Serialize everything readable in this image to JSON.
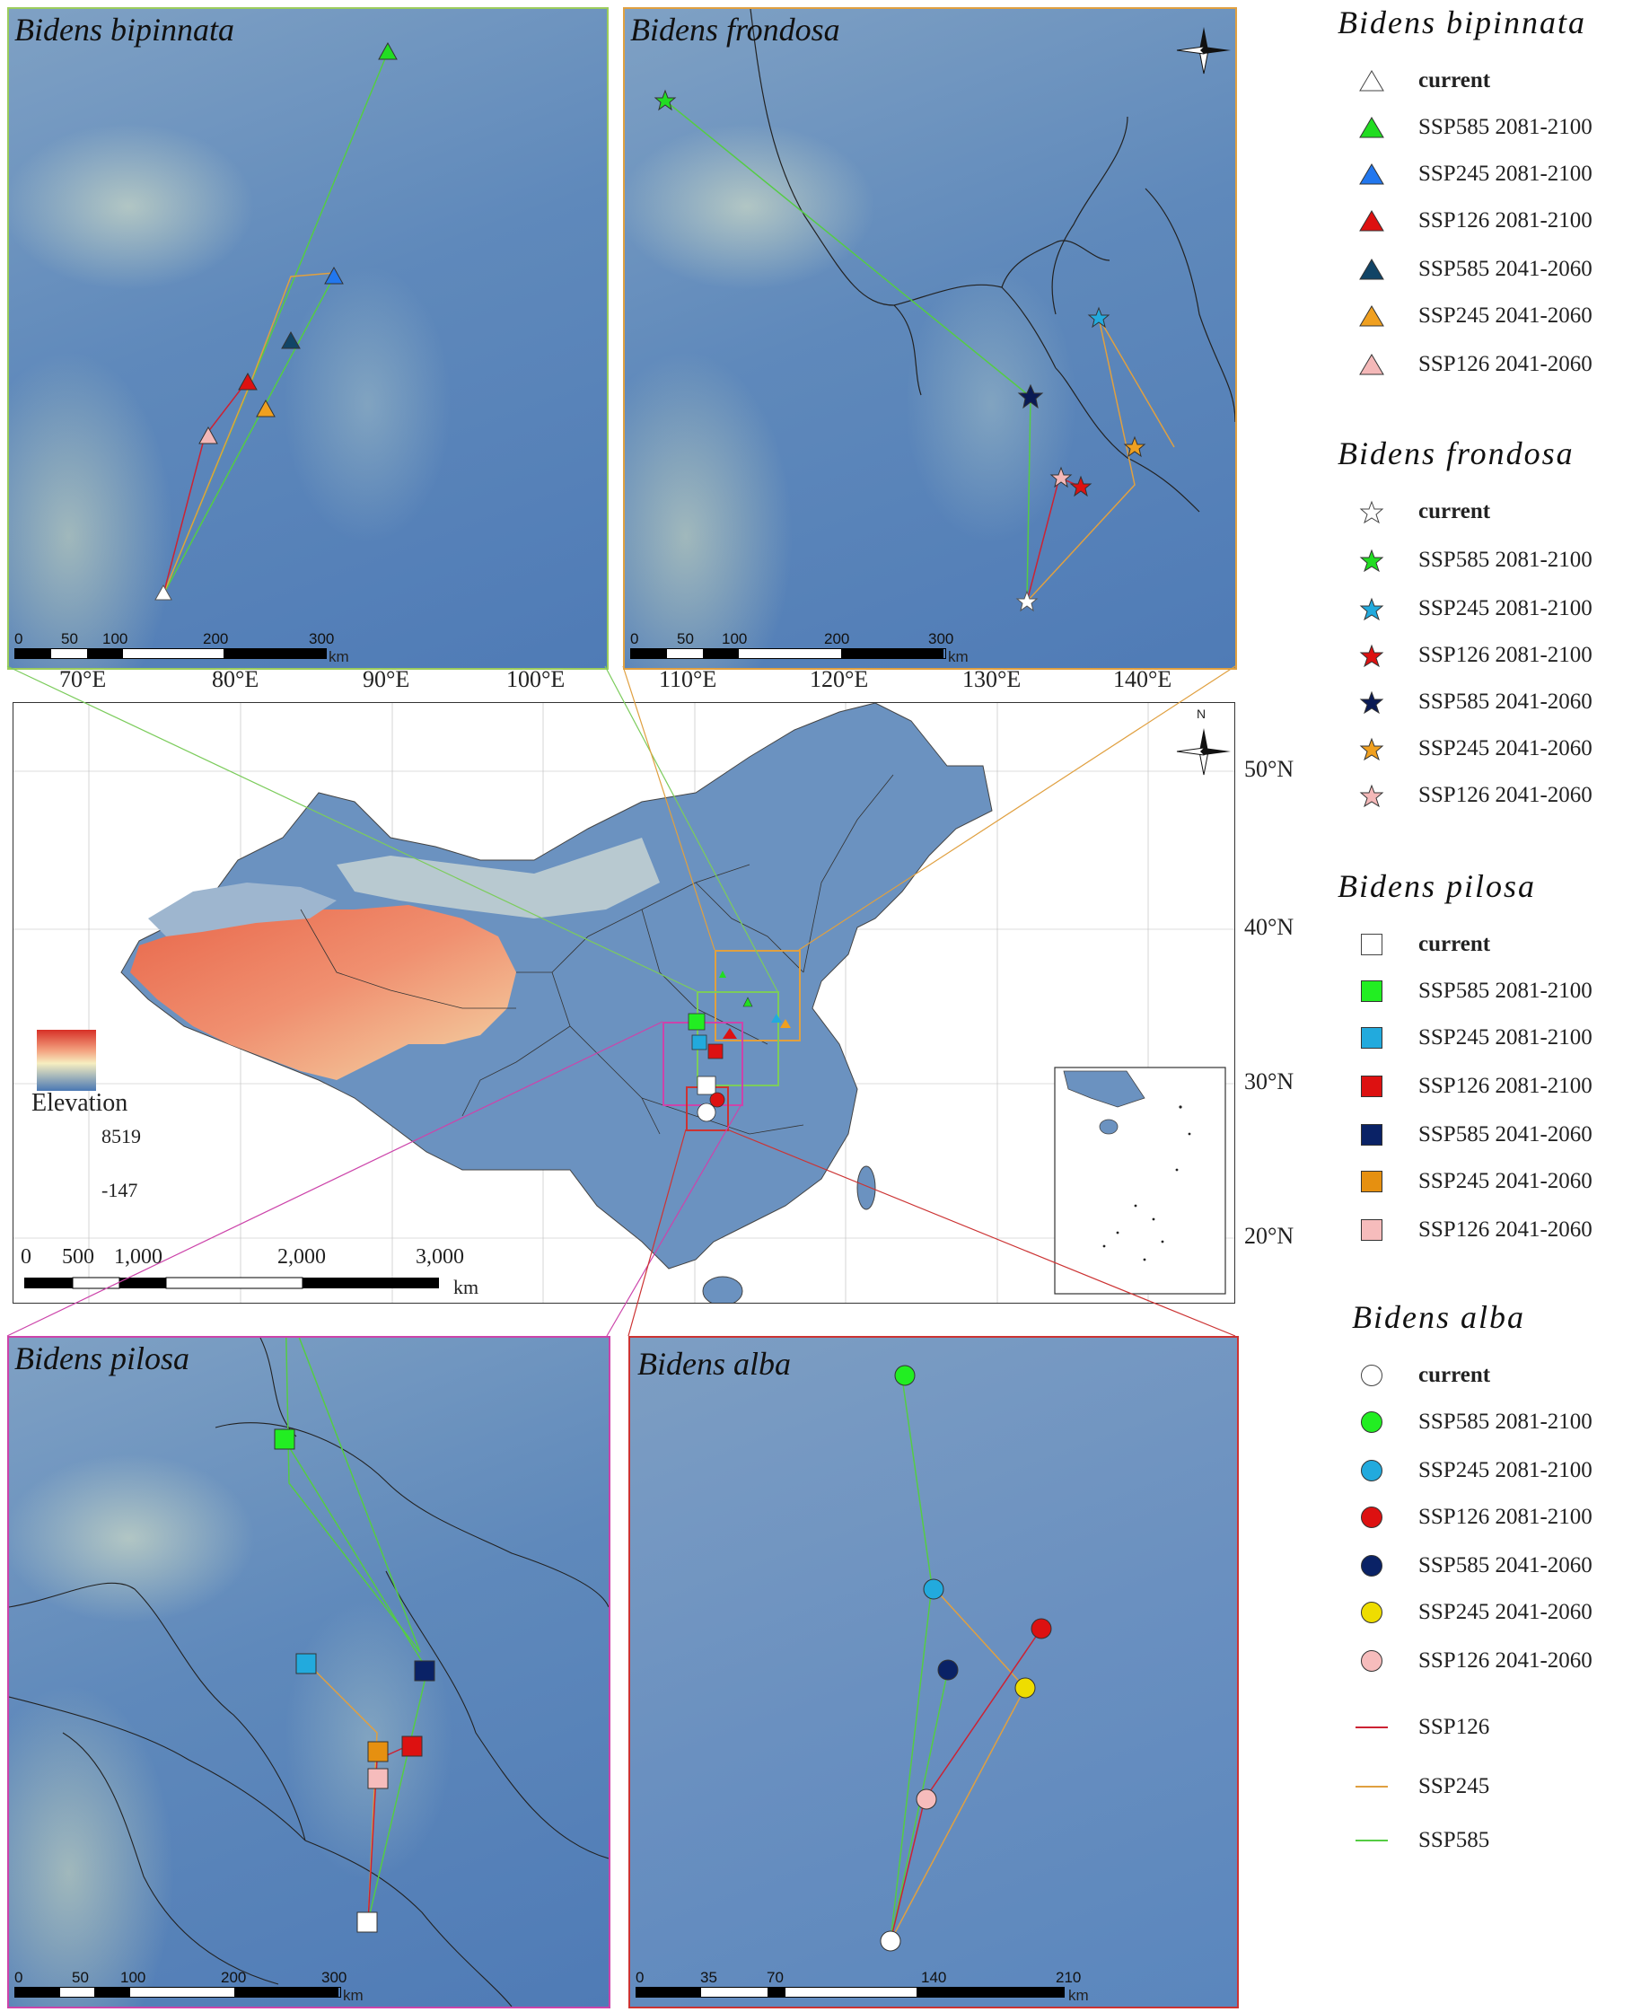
{
  "panels": {
    "bipinnata_title": "Bidens bipinnata",
    "frondosa_title": "Bidens frondosa",
    "pilosa_title": "Bidens pilosa",
    "alba_title": "Bidens alba",
    "scale_unit": "km",
    "top_left_scale": [
      "0",
      "50",
      "100",
      "200",
      "300"
    ],
    "top_right_scale": [
      "0",
      "50",
      "100",
      "200",
      "300"
    ],
    "bottom_left_scale": [
      "0",
      "50",
      "100",
      "200",
      "300"
    ],
    "bottom_right_scale": [
      "0",
      "35",
      "70",
      "140",
      "210"
    ]
  },
  "main_map": {
    "lon_labels": [
      "70°E",
      "80°E",
      "90°E",
      "100°E",
      "110°E",
      "120°E",
      "130°E",
      "140°E"
    ],
    "lat_labels": [
      "50°N",
      "40°N",
      "30°N",
      "20°N"
    ],
    "elevation_title": "Elevation",
    "elevation_max": "8519",
    "elevation_min": "-147",
    "scale_labels": [
      "0",
      "500",
      "1,000",
      "2,000",
      "3,000"
    ],
    "scale_unit": "km",
    "north_label": "N"
  },
  "legend": {
    "sections": [
      {
        "title": "Bidens bipinnata",
        "marker": "triangle",
        "items": [
          {
            "label": "current",
            "color": "#ffffff"
          },
          {
            "label": "SSP585  2081-2100",
            "color": "#22dd22"
          },
          {
            "label": "SSP245  2081-2100",
            "color": "#2277ee"
          },
          {
            "label": "SSP126  2081-2100",
            "color": "#dd1111"
          },
          {
            "label": "SSP585  2041-2060",
            "color": "#114466"
          },
          {
            "label": "SSP245  2041-2060",
            "color": "#f0a020"
          },
          {
            "label": "SSP126  2041-2060",
            "color": "#f4b8b8"
          }
        ]
      },
      {
        "title": "Bidens frondosa",
        "marker": "star",
        "items": [
          {
            "label": "current",
            "color": "#ffffff"
          },
          {
            "label": "SSP585  2081-2100",
            "color": "#22dd22"
          },
          {
            "label": "SSP245  2081-2100",
            "color": "#22aadd"
          },
          {
            "label": "SSP126  2081-2100",
            "color": "#dd1111"
          },
          {
            "label": "SSP585  2041-2060",
            "color": "#0a1a55"
          },
          {
            "label": "SSP245  2041-2060",
            "color": "#f0a020"
          },
          {
            "label": "SSP126  2041-2060",
            "color": "#f4b8b8"
          }
        ]
      },
      {
        "title": "Bidens pilosa",
        "marker": "square",
        "items": [
          {
            "label": "current",
            "color": "#ffffff"
          },
          {
            "label": "SSP585  2081-2100",
            "color": "#22ee22"
          },
          {
            "label": "SSP245  2081-2100",
            "color": "#22aadd"
          },
          {
            "label": "SSP126  2081-2100",
            "color": "#dd1111"
          },
          {
            "label": "SSP585  2041-2060",
            "color": "#0a2266"
          },
          {
            "label": "SSP245  2041-2060",
            "color": "#e69010"
          },
          {
            "label": "SSP126  2041-2060",
            "color": "#f6bcbc"
          }
        ]
      },
      {
        "title": "Bidens alba",
        "marker": "circle",
        "items": [
          {
            "label": "current",
            "color": "#ffffff"
          },
          {
            "label": "SSP585  2081-2100",
            "color": "#22ee22"
          },
          {
            "label": "SSP245  2081-2100",
            "color": "#22aadd"
          },
          {
            "label": "SSP126  2081-2100",
            "color": "#dd1111"
          },
          {
            "label": "SSP585  2041-2060",
            "color": "#0a2266"
          },
          {
            "label": "SSP245  2041-2060",
            "color": "#eedd00"
          },
          {
            "label": "SSP126  2041-2060",
            "color": "#f6bcbc"
          }
        ]
      }
    ],
    "lines": [
      {
        "label": "SSP126",
        "color": "#cc2233"
      },
      {
        "label": "SSP245",
        "color": "#e0a040"
      },
      {
        "label": "SSP585",
        "color": "#55cc44"
      }
    ]
  },
  "colors": {
    "frame_bipinnata": "#9ccc5c",
    "frame_frondosa": "#e0a040",
    "frame_pilosa": "#cc44aa",
    "frame_alba": "#cc3333"
  }
}
